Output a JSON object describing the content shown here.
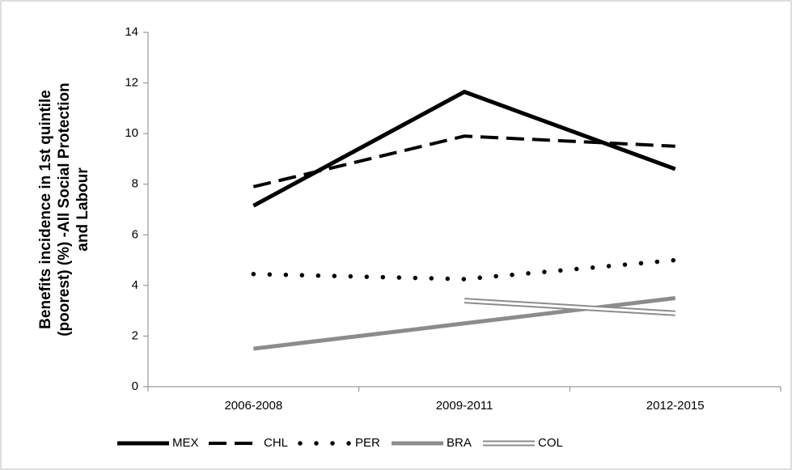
{
  "chart_data": {
    "type": "line",
    "y_label": [
      "Benefits incidence in 1st quintile",
      "(poorest) (%) -All Social Protection",
      "and Labour"
    ],
    "categories": [
      "2006-2008",
      "2009-2011",
      "2012-2015"
    ],
    "series": [
      {
        "name": "MEX",
        "color": "#000000",
        "dash": "solid",
        "values": [
          7.15,
          11.65,
          8.6
        ]
      },
      {
        "name": "CHL",
        "color": "#000000",
        "dash": "dashed",
        "values": [
          7.9,
          9.9,
          9.5
        ]
      },
      {
        "name": "PER",
        "color": "#000000",
        "dash": "dotted",
        "values": [
          4.45,
          4.25,
          5.0
        ]
      },
      {
        "name": "BRA",
        "color": "#8c8c8c",
        "dash": "solid",
        "values": [
          1.5,
          2.5,
          3.5
        ]
      },
      {
        "name": "COL",
        "color": "#8c8c8c",
        "dash": "double",
        "values": [
          null,
          3.4,
          2.9
        ]
      }
    ],
    "ylim": [
      0,
      14
    ],
    "yticks": [
      0,
      2,
      4,
      6,
      8,
      10,
      12,
      14
    ],
    "grid": false,
    "legend": "bottom"
  }
}
